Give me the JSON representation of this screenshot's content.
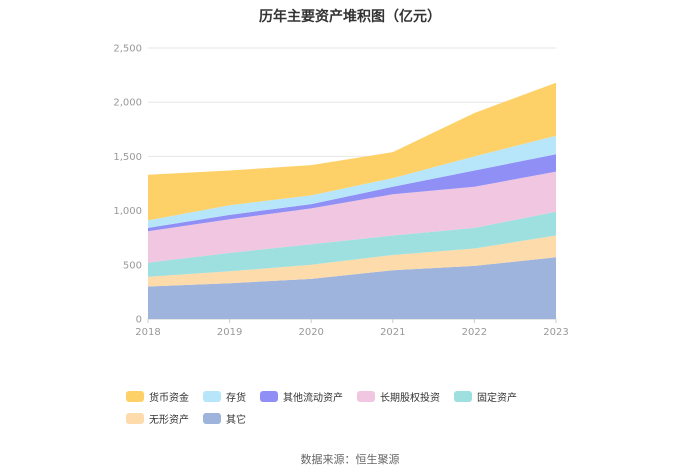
{
  "chart_data": {
    "type": "area",
    "stacked": true,
    "title": "历年主要资产堆积图（亿元）",
    "source": "数据来源：恒生聚源",
    "categories": [
      "2018",
      "2019",
      "2020",
      "2021",
      "2022",
      "2023"
    ],
    "y_ticks": [
      "0",
      "500",
      "1,000",
      "1,500",
      "2,000",
      "2,500"
    ],
    "ylim": [
      0,
      2500
    ],
    "grid": true,
    "legend_position": "bottom",
    "series": [
      {
        "name": "其它",
        "color": "#9fb4dd",
        "values": [
          300,
          330,
          370,
          450,
          490,
          570
        ]
      },
      {
        "name": "无形资产",
        "color": "#fddbaa",
        "values": [
          90,
          110,
          130,
          140,
          160,
          200
        ]
      },
      {
        "name": "固定资产",
        "color": "#9ee0df",
        "values": [
          130,
          170,
          190,
          180,
          190,
          220
        ]
      },
      {
        "name": "长期股权投资",
        "color": "#f1c6e0",
        "values": [
          290,
          310,
          330,
          380,
          380,
          370
        ]
      },
      {
        "name": "其他流动资产",
        "color": "#8f8ff5",
        "values": [
          30,
          40,
          40,
          70,
          150,
          160
        ]
      },
      {
        "name": "存货",
        "color": "#b7e6fb",
        "values": [
          70,
          90,
          80,
          80,
          130,
          170
        ]
      },
      {
        "name": "货币资金",
        "color": "#fdd167",
        "values": [
          420,
          320,
          280,
          240,
          400,
          490
        ]
      }
    ],
    "legend_order": [
      "货币资金",
      "存货",
      "其他流动资产",
      "长期股权投资",
      "固定资产",
      "无形资产",
      "其它"
    ]
  }
}
